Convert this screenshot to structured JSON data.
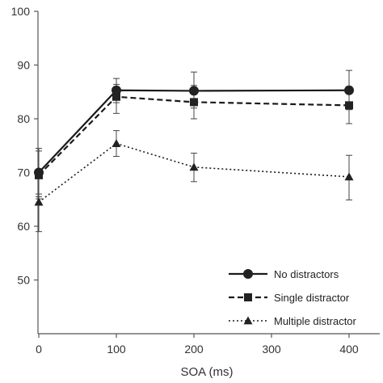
{
  "chart_data": {
    "type": "line",
    "xlabel": "SOA (ms)",
    "ylabel": "",
    "ylim": [
      40,
      100
    ],
    "y_ticks": [
      50,
      60,
      70,
      80,
      90,
      100
    ],
    "x_tick_labels": [
      "0",
      "100",
      "200",
      "300",
      "400"
    ],
    "legend_position": "bottom-right",
    "grid": false,
    "series": [
      {
        "name": "No distractors",
        "marker": "circle",
        "line_style": "solid",
        "x": [
          0,
          100,
          200,
          400
        ],
        "y": [
          70,
          85.3,
          85.2,
          85.3
        ],
        "err_low": [
          66,
          83,
          82,
          81.7
        ],
        "err_high": [
          74,
          87.5,
          88.7,
          89
        ]
      },
      {
        "name": "Single distractor",
        "marker": "square",
        "line_style": "dashed",
        "x": [
          0,
          100,
          200,
          400
        ],
        "y": [
          69.5,
          84.1,
          83.1,
          82.5
        ],
        "err_low": [
          65.1,
          81,
          80,
          79.1
        ],
        "err_high": [
          74.5,
          86.4,
          86.2,
          86
        ]
      },
      {
        "name": "Multiple distractor",
        "marker": "triangle",
        "line_style": "dotted",
        "x": [
          0,
          100,
          200,
          400
        ],
        "y": [
          64.5,
          75.4,
          71,
          69.2
        ],
        "err_low": [
          59,
          73,
          68.3,
          64.9
        ],
        "err_high": [
          65.5,
          77.8,
          73.6,
          73.2
        ]
      }
    ]
  }
}
